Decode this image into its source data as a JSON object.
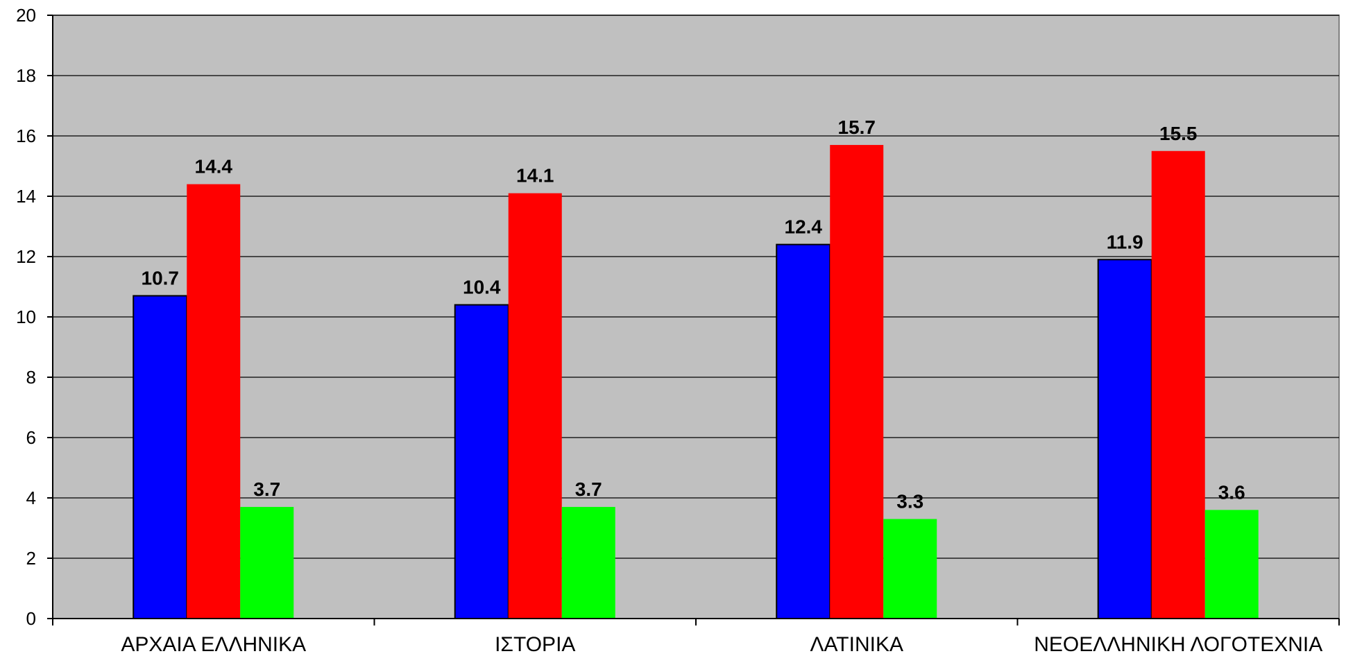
{
  "chart_data": {
    "type": "bar",
    "categories": [
      "ΑΡΧΑΙΑ ΕΛΛΗΝΙΚΑ",
      "ΙΣΤΟΡΙΑ",
      "ΛΑΤΙΝΙΚΑ",
      "ΝΕΟΕΛΛΗΝΙΚΗ ΛΟΓΟΤΕΧΝΙΑ"
    ],
    "series": [
      {
        "values": [
          10.7,
          10.4,
          12.4,
          11.9
        ],
        "color": "#0000ff",
        "outline": "#000000"
      },
      {
        "values": [
          14.4,
          14.1,
          15.7,
          15.5
        ],
        "color": "#ff0000",
        "outline": ""
      },
      {
        "values": [
          3.7,
          3.7,
          3.3,
          3.6
        ],
        "color": "#00ff00",
        "outline": ""
      }
    ],
    "data_labels": [
      [
        "10.7",
        "10.4",
        "12.4",
        "11.9"
      ],
      [
        "14.4",
        "14.1",
        "15.7",
        "15.5"
      ],
      [
        "3.7",
        "3.7",
        "3.3",
        "3.6"
      ]
    ],
    "title": "",
    "xlabel": "",
    "ylabel": "",
    "ylim": [
      0,
      20
    ],
    "yticks": [
      "0",
      "2",
      "4",
      "6",
      "8",
      "10",
      "12",
      "14",
      "16",
      "18",
      "20"
    ],
    "grid": true,
    "legend": "none",
    "plot_background": "#c0c0c0",
    "gridline_color": "#000000"
  }
}
